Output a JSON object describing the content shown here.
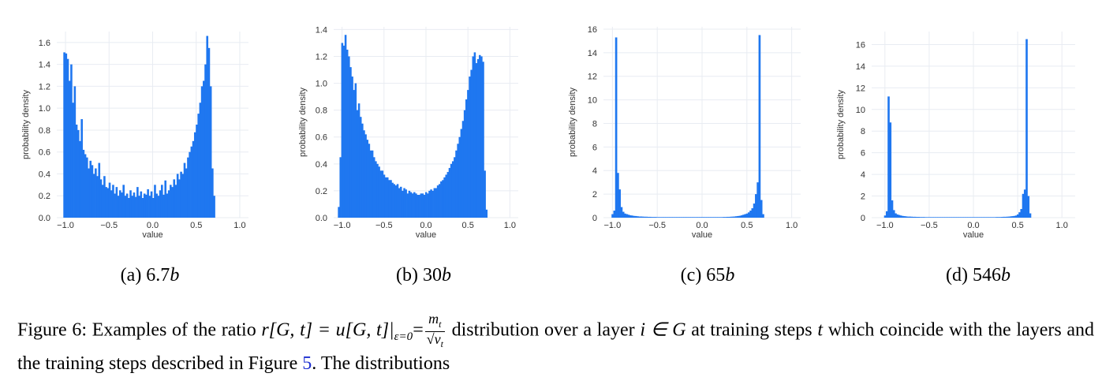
{
  "chart_data": [
    {
      "type": "bar",
      "title": "",
      "xlabel": "value",
      "ylabel": "probability density",
      "xlim": [
        -1.1,
        1.1
      ],
      "ylim": [
        0,
        1.7
      ],
      "xticks": [
        "−1.0",
        "−0.5",
        "0.0",
        "0.5",
        "1.0"
      ],
      "yticks": [
        "0.0",
        "0.2",
        "0.4",
        "0.6",
        "0.8",
        "1.0",
        "1.2",
        "1.4",
        "1.6"
      ],
      "color": "#1f77f0",
      "grid": true,
      "series": [
        {
          "x_start": -1.025,
          "bin_width": 0.02,
          "values": [
            1.51,
            1.5,
            1.45,
            1.25,
            1.4,
            1.05,
            1.2,
            0.85,
            0.8,
            0.7,
            0.9,
            0.62,
            0.58,
            0.55,
            0.45,
            0.52,
            0.48,
            0.4,
            0.45,
            0.38,
            0.5,
            0.35,
            0.3,
            0.38,
            0.28,
            0.27,
            0.32,
            0.25,
            0.3,
            0.22,
            0.28,
            0.2,
            0.25,
            0.23,
            0.3,
            0.2,
            0.22,
            0.18,
            0.25,
            0.2,
            0.23,
            0.19,
            0.28,
            0.2,
            0.24,
            0.18,
            0.22,
            0.21,
            0.26,
            0.2,
            0.24,
            0.18,
            0.3,
            0.22,
            0.2,
            0.25,
            0.3,
            0.21,
            0.34,
            0.22,
            0.25,
            0.3,
            0.28,
            0.35,
            0.3,
            0.4,
            0.35,
            0.42,
            0.4,
            0.5,
            0.45,
            0.55,
            0.6,
            0.65,
            0.7,
            0.78,
            0.85,
            0.95,
            1.05,
            1.2,
            1.25,
            1.4,
            1.66,
            1.55,
            1.2,
            0.45,
            0.2
          ]
        }
      ]
    },
    {
      "type": "bar",
      "title": "",
      "xlabel": "value",
      "ylabel": "probability density",
      "xlim": [
        -1.1,
        1.1
      ],
      "ylim": [
        0,
        1.42
      ],
      "xticks": [
        "−1.0",
        "−0.5",
        "0.0",
        "0.5",
        "1.0"
      ],
      "yticks": [
        "0.0",
        "0.2",
        "0.4",
        "0.6",
        "0.8",
        "1.0",
        "1.2",
        "1.4"
      ],
      "color": "#1f77f0",
      "grid": true,
      "series": [
        {
          "x_start": -1.05,
          "bin_width": 0.02,
          "values": [
            0.08,
            0.45,
            1.3,
            1.28,
            1.36,
            1.25,
            1.2,
            1.12,
            1.05,
            0.95,
            1.0,
            0.8,
            0.85,
            0.75,
            0.7,
            0.65,
            0.62,
            0.58,
            0.55,
            0.5,
            0.5,
            0.45,
            0.42,
            0.4,
            0.38,
            0.35,
            0.35,
            0.32,
            0.3,
            0.3,
            0.28,
            0.28,
            0.26,
            0.25,
            0.24,
            0.25,
            0.22,
            0.23,
            0.2,
            0.22,
            0.21,
            0.18,
            0.2,
            0.19,
            0.18,
            0.19,
            0.18,
            0.17,
            0.17,
            0.18,
            0.18,
            0.17,
            0.19,
            0.18,
            0.2,
            0.21,
            0.2,
            0.22,
            0.22,
            0.24,
            0.25,
            0.27,
            0.28,
            0.3,
            0.32,
            0.34,
            0.37,
            0.4,
            0.42,
            0.45,
            0.5,
            0.55,
            0.6,
            0.66,
            0.72,
            0.8,
            0.88,
            0.95,
            1.05,
            1.1,
            1.2,
            1.23,
            1.15,
            1.18,
            1.21,
            1.2,
            1.16,
            0.35,
            0.06
          ]
        }
      ]
    },
    {
      "type": "bar",
      "title": "",
      "xlabel": "value",
      "ylabel": "probability density",
      "xlim": [
        -1.1,
        1.1
      ],
      "ylim": [
        0,
        16.2
      ],
      "xticks": [
        "−1.0",
        "−0.5",
        "0.0",
        "0.5",
        "1.0"
      ],
      "yticks": [
        "0",
        "2",
        "4",
        "6",
        "8",
        "10",
        "12",
        "14",
        "16"
      ],
      "color": "#1f77f0",
      "grid": true,
      "series": [
        {
          "x_start": -1.01,
          "bin_width": 0.02,
          "values": [
            0.3,
            0.6,
            15.3,
            3.8,
            2.4,
            0.9,
            0.5,
            0.35,
            0.3,
            0.25,
            0.2,
            0.18,
            0.15,
            0.14,
            0.12,
            0.1,
            0.1,
            0.09,
            0.08,
            0.08,
            0.07,
            0.07,
            0.06,
            0.06,
            0.06,
            0.05,
            0.05,
            0.05,
            0.05,
            0.05,
            0.05,
            0.05,
            0.05,
            0.05,
            0.05,
            0.05,
            0.05,
            0.05,
            0.05,
            0.05,
            0.05,
            0.05,
            0.05,
            0.05,
            0.05,
            0.05,
            0.05,
            0.05,
            0.05,
            0.05,
            0.05,
            0.05,
            0.05,
            0.05,
            0.05,
            0.05,
            0.05,
            0.05,
            0.05,
            0.05,
            0.05,
            0.05,
            0.06,
            0.06,
            0.07,
            0.07,
            0.08,
            0.09,
            0.1,
            0.12,
            0.14,
            0.16,
            0.2,
            0.25,
            0.3,
            0.35,
            0.45,
            0.6,
            0.8,
            1.2,
            2.0,
            3.0,
            15.5,
            1.5,
            0.3
          ]
        }
      ]
    },
    {
      "type": "bar",
      "title": "",
      "xlabel": "value",
      "ylabel": "probability density",
      "xlim": [
        -1.15,
        1.15
      ],
      "ylim": [
        0,
        17.2
      ],
      "xticks": [
        "−1.0",
        "−0.5",
        "0.0",
        "0.5",
        "1.0"
      ],
      "yticks": [
        "0",
        "2",
        "4",
        "6",
        "8",
        "10",
        "12",
        "14",
        "16"
      ],
      "color": "#1f77f0",
      "grid": true,
      "series": [
        {
          "x_start": -1.01,
          "bin_width": 0.02,
          "values": [
            0.2,
            0.6,
            11.2,
            8.8,
            1.6,
            0.7,
            0.4,
            0.3,
            0.25,
            0.2,
            0.16,
            0.14,
            0.12,
            0.1,
            0.1,
            0.09,
            0.08,
            0.08,
            0.07,
            0.07,
            0.06,
            0.06,
            0.06,
            0.05,
            0.05,
            0.05,
            0.05,
            0.05,
            0.05,
            0.05,
            0.05,
            0.05,
            0.05,
            0.05,
            0.05,
            0.05,
            0.05,
            0.05,
            0.05,
            0.05,
            0.05,
            0.05,
            0.05,
            0.05,
            0.05,
            0.05,
            0.05,
            0.05,
            0.05,
            0.05,
            0.05,
            0.05,
            0.05,
            0.05,
            0.05,
            0.05,
            0.05,
            0.05,
            0.05,
            0.05,
            0.05,
            0.05,
            0.05,
            0.06,
            0.06,
            0.06,
            0.07,
            0.08,
            0.08,
            0.09,
            0.1,
            0.12,
            0.14,
            0.16,
            0.2,
            0.3,
            0.5,
            0.8,
            2.2,
            2.6,
            16.5,
            2.0,
            0.4
          ]
        }
      ]
    }
  ],
  "subcaptions": [
    {
      "label": "(a) 6.7",
      "suffix": "b"
    },
    {
      "label": "(b) 30",
      "suffix": "b"
    },
    {
      "label": "(c) 65",
      "suffix": "b"
    },
    {
      "label": "(d) 546",
      "suffix": "b"
    }
  ],
  "caption": {
    "figure_label": "Figure 6:",
    "part1": "Examples of the ratio",
    "math1": "r[G, t] = u[G, t]|",
    "math1_sub": "ε=0",
    "math1_eq": "=",
    "frac_num": "m",
    "frac_num_sub": "t",
    "frac_den": "√v",
    "frac_den_sub": "t",
    "part2": "distribution over a layer",
    "math2": "i ∈ G",
    "part3": "at training",
    "part4": "steps",
    "math3": "t",
    "part5": "which coincide with the layers and the training steps described in Figure",
    "link": "5",
    "part6": ". The distributions"
  }
}
